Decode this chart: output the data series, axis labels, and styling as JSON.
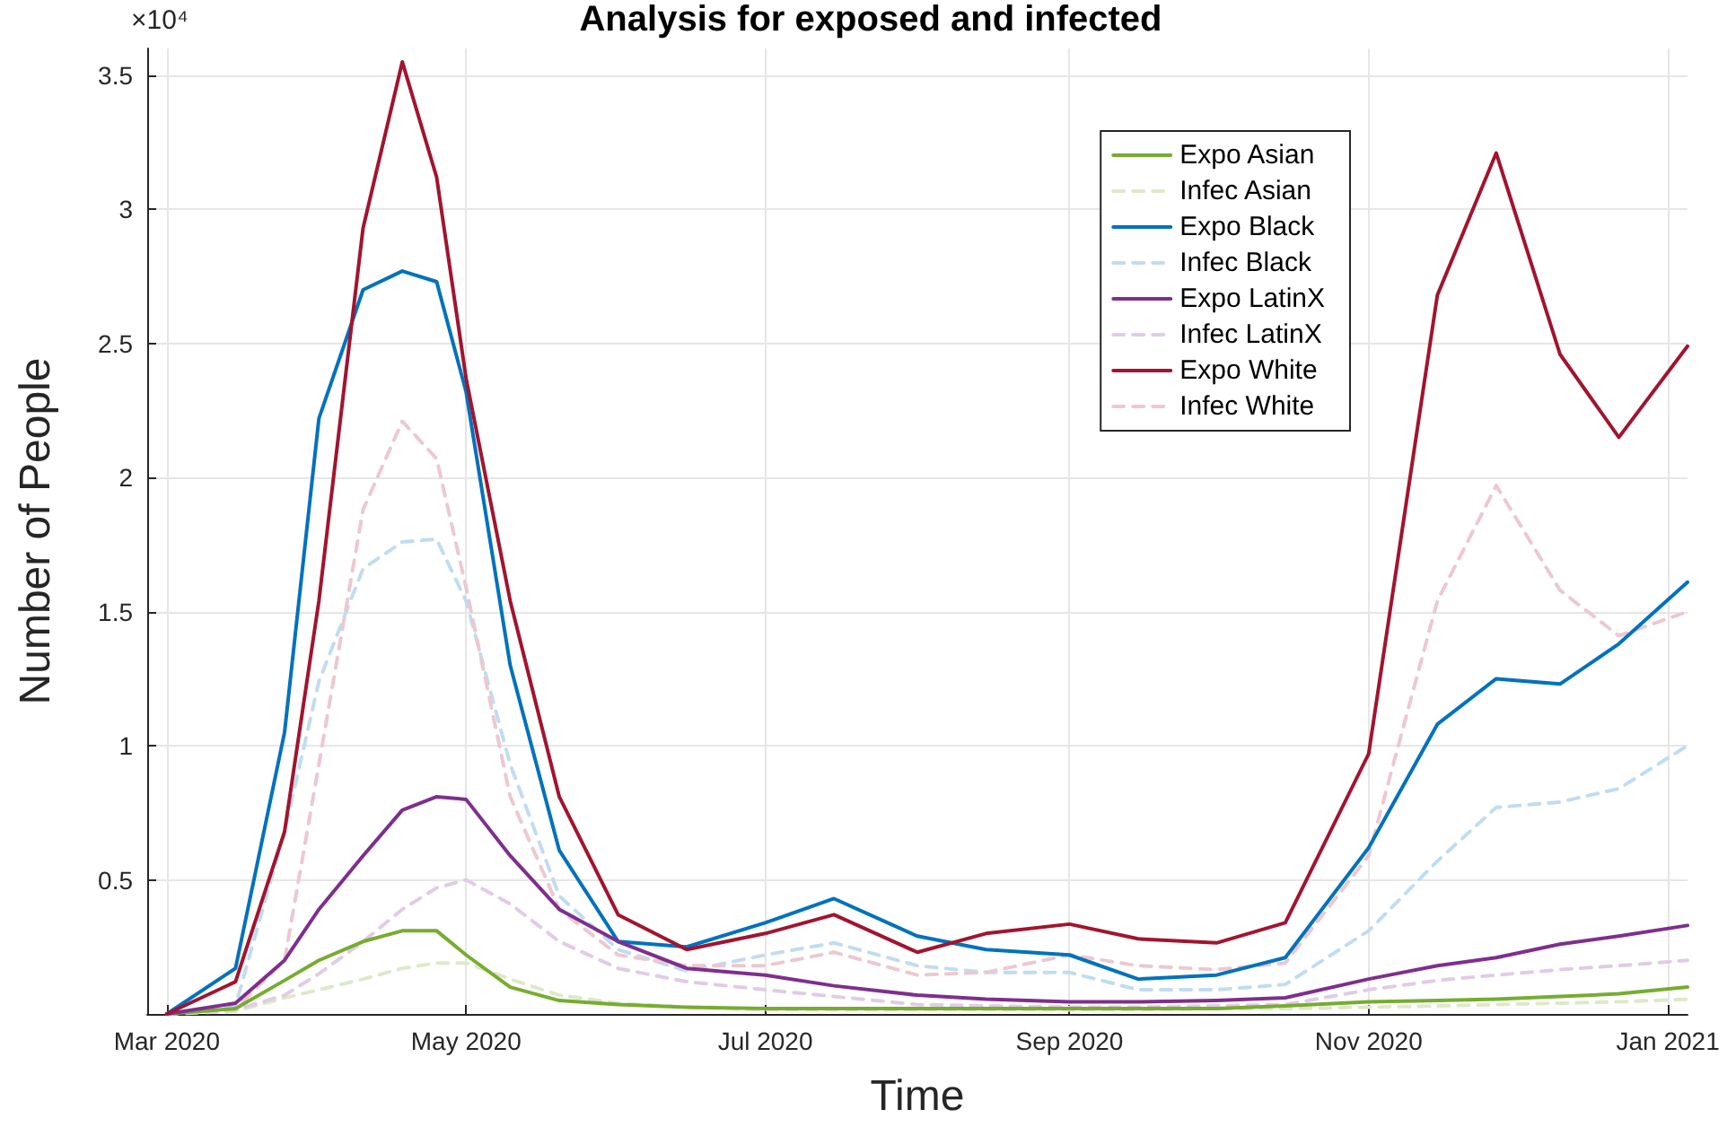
{
  "chart_data": {
    "type": "line",
    "title": "Analysis for exposed and infected",
    "xlabel": "Time",
    "ylabel": "Number of People",
    "annotations": [
      "×10⁴"
    ],
    "x": [
      "2020-03-01",
      "2020-03-15",
      "2020-03-25",
      "2020-04-01",
      "2020-04-10",
      "2020-04-18",
      "2020-04-25",
      "2020-05-01",
      "2020-05-10",
      "2020-05-20",
      "2020-06-01",
      "2020-06-15",
      "2020-07-01",
      "2020-07-15",
      "2020-08-01",
      "2020-08-15",
      "2020-09-01",
      "2020-09-15",
      "2020-10-01",
      "2020-10-15",
      "2020-11-01",
      "2020-11-15",
      "2020-11-27",
      "2020-12-10",
      "2020-12-22",
      "2021-01-05"
    ],
    "series": [
      {
        "name": "Expo Asian",
        "color": "#77ac30",
        "line_style": "solid",
        "values": [
          0,
          0.02,
          0.125,
          0.2,
          0.27,
          0.31,
          0.31,
          0.22,
          0.1,
          0.05,
          0.035,
          0.025,
          0.02,
          0.02,
          0.02,
          0.02,
          0.02,
          0.02,
          0.02,
          0.03,
          0.045,
          0.05,
          0.055,
          0.065,
          0.075,
          0.1
        ]
      },
      {
        "name": "Infec Asian",
        "color": "#dde9c8",
        "line_style": "dashed",
        "values": [
          0,
          0.01,
          0.06,
          0.09,
          0.13,
          0.17,
          0.19,
          0.19,
          0.13,
          0.07,
          0.04,
          0.025,
          0.015,
          0.015,
          0.015,
          0.015,
          0.015,
          0.015,
          0.02,
          0.02,
          0.025,
          0.03,
          0.035,
          0.04,
          0.045,
          0.055
        ]
      },
      {
        "name": "Expo Black",
        "color": "#0072bd",
        "line_style": "solid",
        "values": [
          0,
          0.17,
          1.05,
          2.22,
          2.7,
          2.77,
          2.73,
          2.32,
          1.3,
          0.61,
          0.27,
          0.25,
          0.34,
          0.43,
          0.29,
          0.24,
          0.22,
          0.13,
          0.145,
          0.21,
          0.62,
          1.08,
          1.25,
          1.23,
          1.38,
          1.61
        ]
      },
      {
        "name": "Infec Black",
        "color": "#c0dcf0",
        "line_style": "dashed",
        "values": [
          0,
          0.03,
          0.68,
          1.24,
          1.66,
          1.76,
          1.77,
          1.54,
          0.93,
          0.44,
          0.24,
          0.16,
          0.22,
          0.265,
          0.18,
          0.155,
          0.155,
          0.09,
          0.09,
          0.11,
          0.31,
          0.57,
          0.77,
          0.79,
          0.84,
          1
        ]
      },
      {
        "name": "Expo LatinX",
        "color": "#7e2f8e",
        "line_style": "solid",
        "values": [
          0,
          0.04,
          0.2,
          0.39,
          0.59,
          0.76,
          0.81,
          0.8,
          0.59,
          0.39,
          0.27,
          0.17,
          0.145,
          0.105,
          0.07,
          0.055,
          0.045,
          0.045,
          0.05,
          0.06,
          0.13,
          0.18,
          0.21,
          0.26,
          0.29,
          0.33
        ]
      },
      {
        "name": "Infec LatinX",
        "color": "#e0cce4",
        "line_style": "dashed",
        "values": [
          0,
          0.015,
          0.07,
          0.15,
          0.27,
          0.39,
          0.47,
          0.5,
          0.41,
          0.27,
          0.17,
          0.12,
          0.09,
          0.065,
          0.035,
          0.03,
          0.025,
          0.025,
          0.03,
          0.035,
          0.09,
          0.125,
          0.145,
          0.165,
          0.18,
          0.2
        ]
      },
      {
        "name": "Expo White",
        "color": "#a2142f",
        "line_style": "solid",
        "values": [
          0,
          0.12,
          0.68,
          1.54,
          2.93,
          3.55,
          3.12,
          2.37,
          1.54,
          0.81,
          0.37,
          0.24,
          0.3,
          0.37,
          0.23,
          0.3,
          0.335,
          0.28,
          0.265,
          0.34,
          0.97,
          2.68,
          3.21,
          2.46,
          2.15,
          2.49
        ]
      },
      {
        "name": "Infec White",
        "color": "#ecc8d0",
        "line_style": "dashed",
        "values": [
          0,
          0.02,
          0.2,
          0.93,
          1.88,
          2.21,
          2.07,
          1.59,
          0.81,
          0.39,
          0.22,
          0.18,
          0.18,
          0.23,
          0.145,
          0.155,
          0.22,
          0.18,
          0.165,
          0.19,
          0.59,
          1.54,
          1.97,
          1.58,
          1.41,
          1.5
        ]
      }
    ],
    "xlim": [
      "2020-02-26",
      "2021-01-05"
    ],
    "xticks": [
      {
        "value": "2020-03-01",
        "label": "Mar 2020"
      },
      {
        "value": "2020-05-01",
        "label": "May 2020"
      },
      {
        "value": "2020-07-01",
        "label": "Jul 2020"
      },
      {
        "value": "2020-09-01",
        "label": "Sep 2020"
      },
      {
        "value": "2020-11-01",
        "label": "Nov 2020"
      },
      {
        "value": "2021-01-01",
        "label": "Jan 2021"
      }
    ],
    "ylim": [
      0,
      3.6
    ],
    "yticks": [
      {
        "value": 0,
        "label": null
      },
      0.5,
      1,
      1.5,
      2,
      2.5,
      3,
      3.5
    ],
    "grid": true,
    "legend": "top right",
    "marker": "none"
  }
}
